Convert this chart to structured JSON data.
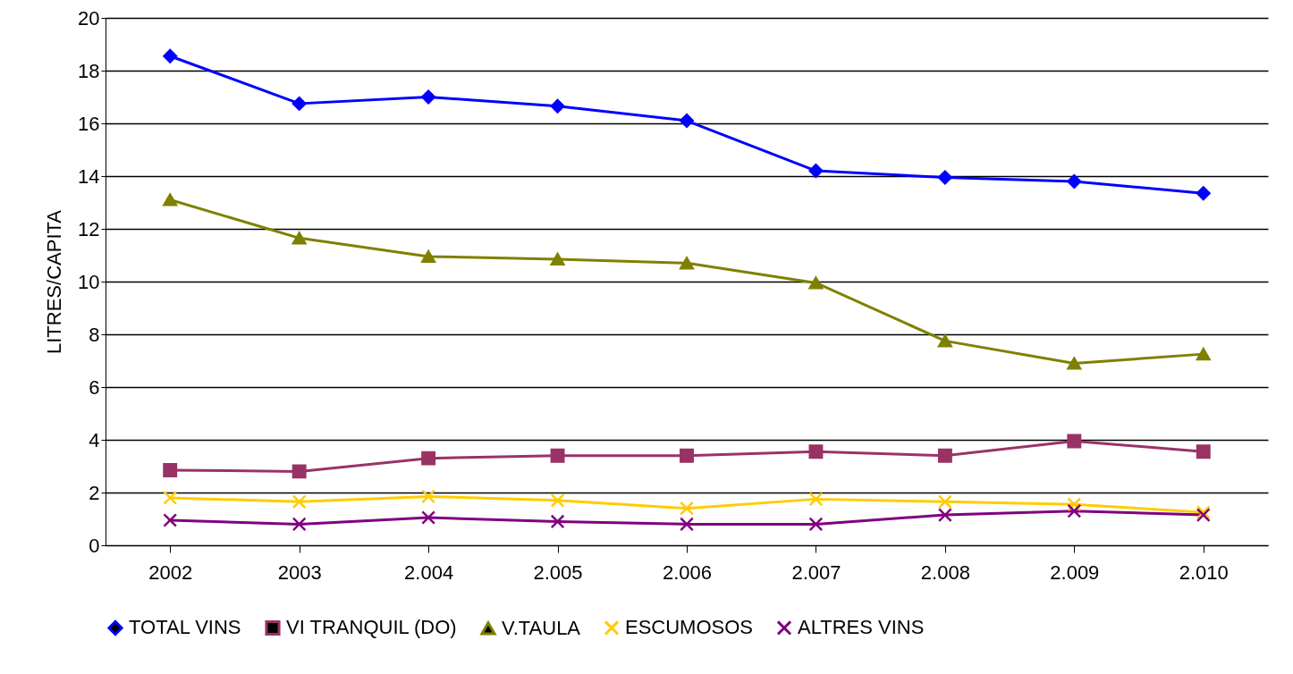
{
  "chart_data": {
    "type": "line",
    "ylabel": "LITRES/CAPITA",
    "categories": [
      "2002",
      "2003",
      "2.004",
      "2.005",
      "2.006",
      "2.007",
      "2.008",
      "2.009",
      "2.010"
    ],
    "series": [
      {
        "name": "TOTAL VINS",
        "color": "#0000ff",
        "marker": "diamond",
        "values": [
          18.55,
          16.75,
          17.0,
          16.65,
          16.1,
          14.2,
          13.95,
          13.8,
          13.35
        ]
      },
      {
        "name": "VI TRANQUIL (DO)",
        "color": "#993366",
        "marker": "square",
        "values": [
          2.85,
          2.8,
          3.3,
          3.4,
          3.4,
          3.55,
          3.4,
          3.95,
          3.55
        ]
      },
      {
        "name": "V.TAULA",
        "color": "#808000",
        "marker": "triangle",
        "values": [
          13.1,
          11.65,
          10.95,
          10.85,
          10.7,
          9.95,
          7.75,
          6.9,
          7.25
        ]
      },
      {
        "name": "ESCUMOSOS",
        "color": "#ffcc00",
        "marker": "cross",
        "values": [
          1.8,
          1.65,
          1.85,
          1.7,
          1.4,
          1.75,
          1.65,
          1.55,
          1.25
        ]
      },
      {
        "name": "ALTRES VINS",
        "color": "#800080",
        "marker": "cross",
        "values": [
          0.95,
          0.8,
          1.05,
          0.9,
          0.8,
          0.8,
          1.15,
          1.3,
          1.15
        ]
      }
    ],
    "ylim": [
      0,
      20
    ],
    "yticks": [
      0,
      2,
      4,
      6,
      8,
      10,
      12,
      14,
      16,
      18,
      20
    ],
    "grid": "y",
    "legend": "bottom",
    "line_style": "solid"
  }
}
